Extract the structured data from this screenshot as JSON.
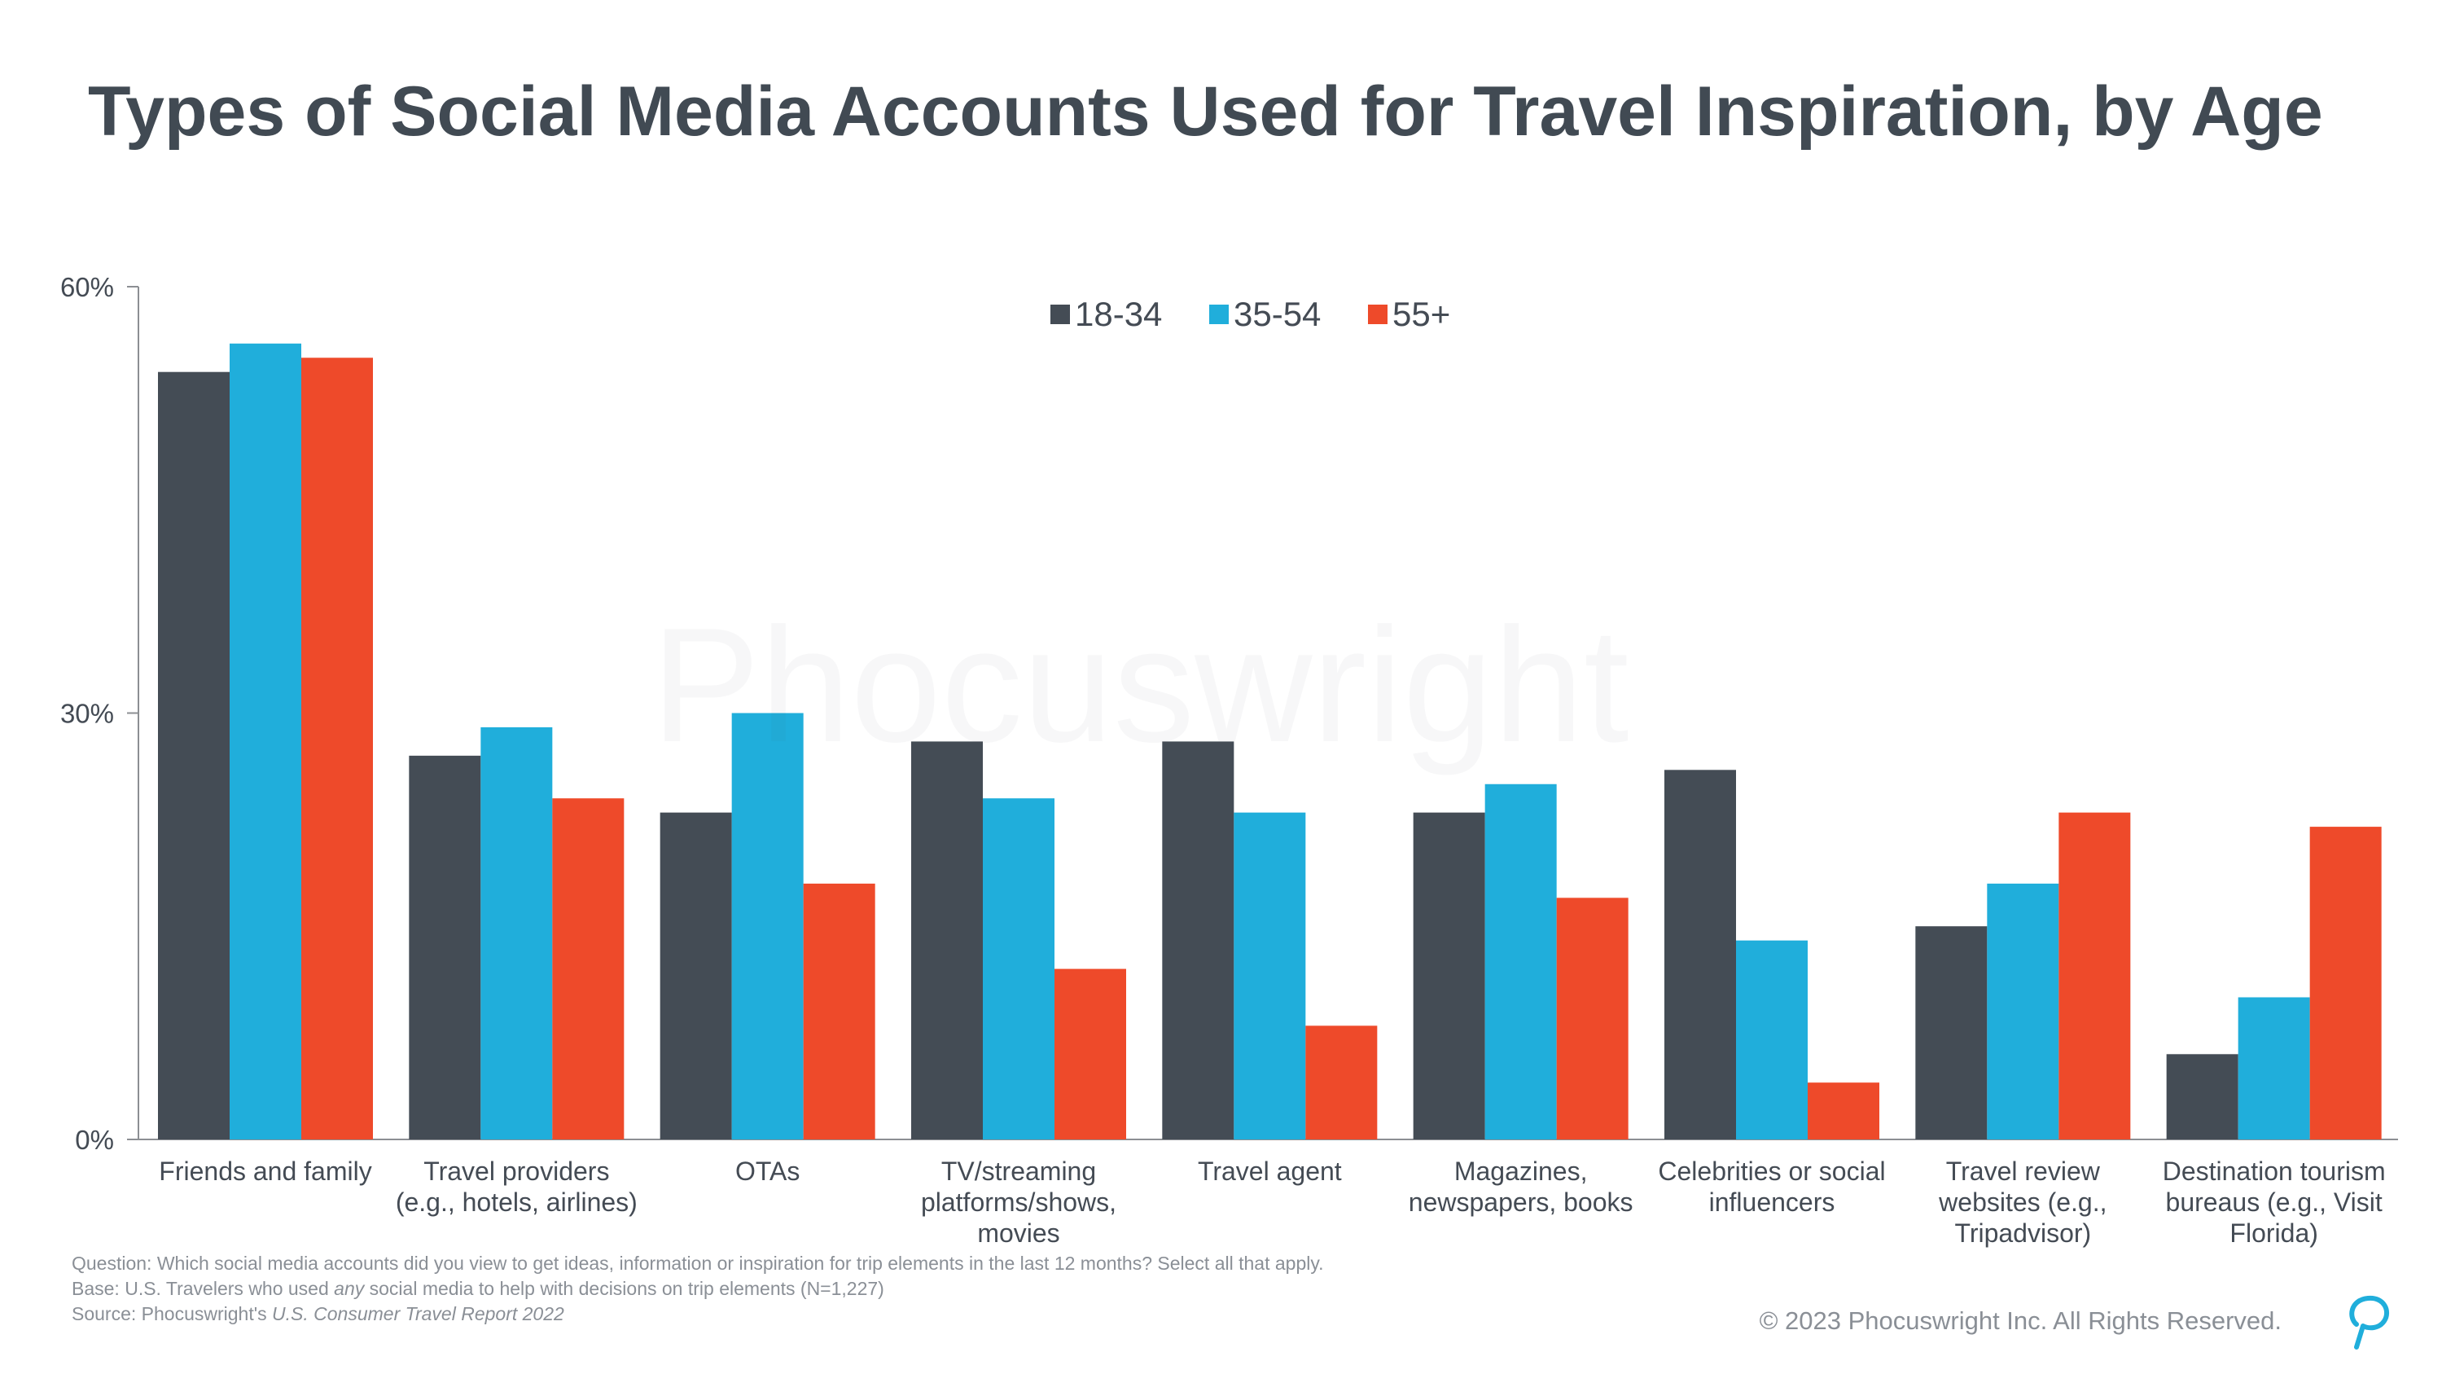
{
  "colors": {
    "series_18_34": "#444c55",
    "series_35_54": "#20aedb",
    "series_55_plus": "#ee4a2a",
    "axis": "#8c8f93",
    "text": "#444b54",
    "muted": "#8a8f96"
  },
  "chart_data": {
    "type": "bar",
    "title": "Types of Social Media Accounts Used for Travel Inspiration, by Age",
    "xlabel": "",
    "ylabel": "",
    "ylim": [
      0,
      60
    ],
    "yticks": [
      {
        "value": 0,
        "label": "0%"
      },
      {
        "value": 30,
        "label": "30%"
      },
      {
        "value": 60,
        "label": "60%"
      }
    ],
    "grid": false,
    "legend_position": "top-center",
    "categories": [
      [
        "Friends and family"
      ],
      [
        "Travel providers",
        "(e.g., hotels, airlines)"
      ],
      [
        "OTAs"
      ],
      [
        "TV/streaming",
        "platforms/shows,",
        "movies"
      ],
      [
        "Travel agent"
      ],
      [
        "Magazines,",
        "newspapers, books"
      ],
      [
        "Celebrities or social",
        "influencers"
      ],
      [
        "Travel review",
        "websites (e.g.,",
        "Tripadvisor)"
      ],
      [
        "Destination tourism",
        "bureaus (e.g., Visit",
        "Florida)"
      ]
    ],
    "series": [
      {
        "name": "18-34",
        "color": "#444c55",
        "values": [
          54,
          27,
          23,
          28,
          28,
          23,
          26,
          15,
          6
        ]
      },
      {
        "name": "35-54",
        "color": "#20aedb",
        "values": [
          56,
          29,
          30,
          24,
          23,
          25,
          14,
          18,
          10
        ]
      },
      {
        "name": "55+",
        "color": "#ee4a2a",
        "values": [
          55,
          24,
          18,
          12,
          8,
          17,
          4,
          23,
          22
        ]
      }
    ]
  },
  "footnotes": {
    "question": "Question: Which social media accounts did you view to get ideas, information or inspiration for trip elements in the last 12 months? Select all that apply.",
    "base_prefix": "Base: U.S. Travelers who used ",
    "base_emphasis": "any",
    "base_suffix": " social media to help with decisions on trip elements (N=1,227)",
    "source_prefix": "Source: Phocuswright's ",
    "source_emphasis": "U.S. Consumer Travel Report 2022"
  },
  "copyright": "© 2023 Phocuswright Inc. All Rights Reserved.",
  "watermark": "Phocuswright",
  "logo_icon": "phocuswright-p-logo-icon"
}
